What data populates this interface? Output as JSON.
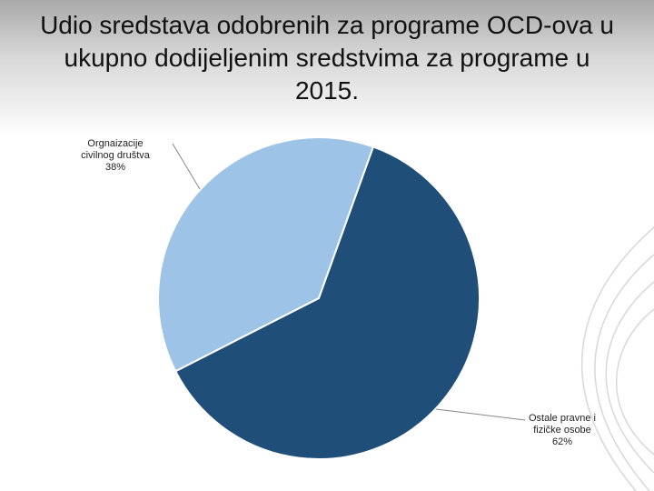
{
  "chart_data": {
    "type": "pie",
    "title": "Udio sredstava odobrenih za programe OCD-ova u ukupno dodijeljenim sredstvima za programe u 2015.",
    "categories": [
      "Orgnaizacije civilnog društva",
      "Ostale pravne i fizičke osobe"
    ],
    "values": [
      38,
      62
    ],
    "value_labels": [
      "38%",
      "62%"
    ],
    "colors": [
      "#9dc3e6",
      "#1f4e79"
    ]
  }
}
